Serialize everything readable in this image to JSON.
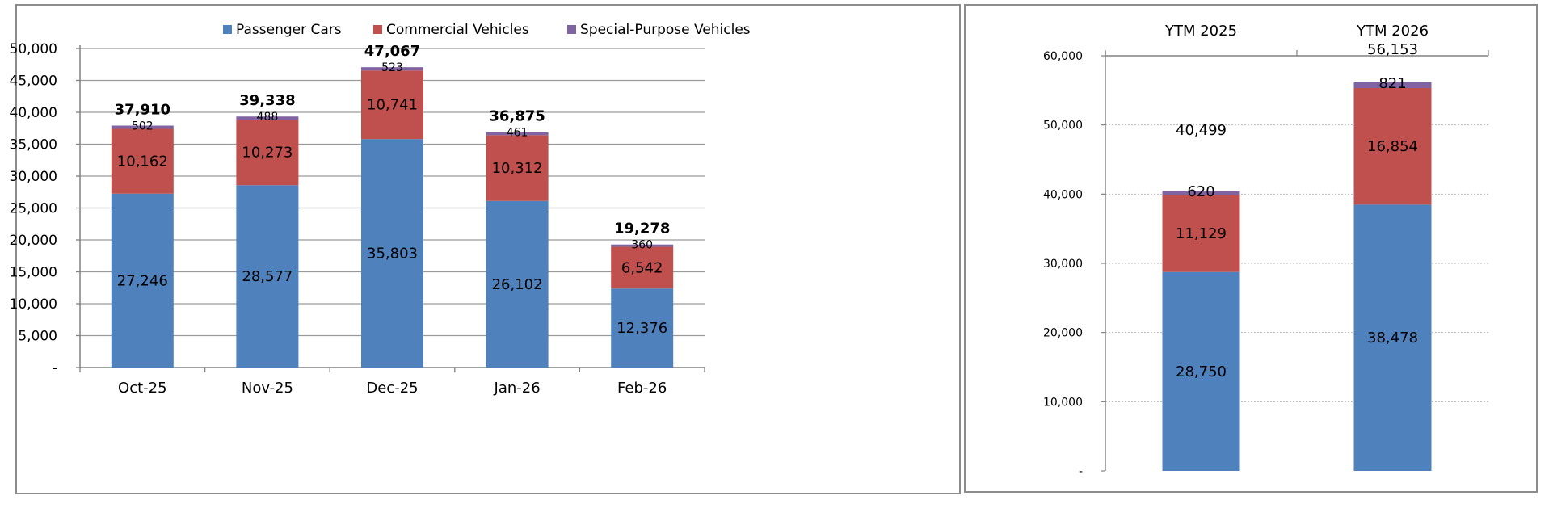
{
  "chart_data": [
    {
      "type": "bar",
      "stacked": true,
      "categories": [
        "Oct-25",
        "Nov-25",
        "Dec-25",
        "Jan-26",
        "Feb-26"
      ],
      "series": [
        {
          "name": "Passenger Cars",
          "color": "#4f81bd",
          "values": [
            27246,
            28577,
            35803,
            26102,
            12376
          ],
          "labels": [
            "27,246",
            "28,577",
            "35,803",
            "26,102",
            "12,376"
          ]
        },
        {
          "name": "Commercial Vehicles",
          "color": "#c0504d",
          "values": [
            10162,
            10273,
            10741,
            10312,
            6542
          ],
          "labels": [
            "10,162",
            "10,273",
            "10,741",
            "10,312",
            "6,542"
          ]
        },
        {
          "name": "Special-Purpose Vehicles",
          "color": "#8064a2",
          "values": [
            502,
            488,
            523,
            461,
            360
          ],
          "labels": [
            "502",
            "488",
            "523",
            "461",
            "360"
          ]
        }
      ],
      "totals": [
        37910,
        39338,
        47067,
        36875,
        19278
      ],
      "total_labels": [
        "37,910",
        "39,338",
        "47,067",
        "36,875",
        "19,278"
      ],
      "ylim": [
        0,
        50000
      ],
      "yticks": [
        0,
        5000,
        10000,
        15000,
        20000,
        25000,
        30000,
        35000,
        40000,
        45000,
        50000
      ],
      "ytick_labels": [
        "-",
        "5,000",
        "10,000",
        "15,000",
        "20,000",
        "25,000",
        "30,000",
        "35,000",
        "40,000",
        "45,000",
        "50,000"
      ],
      "grid": true,
      "legend": "top",
      "title": "",
      "xlabel": "",
      "ylabel": ""
    },
    {
      "type": "bar",
      "stacked": true,
      "categories": [
        "YTM 2025",
        "YTM 2026"
      ],
      "series": [
        {
          "name": "Passenger Cars",
          "color": "#4f81bd",
          "values": [
            28750,
            38478
          ],
          "labels": [
            "28,750",
            "38,478"
          ]
        },
        {
          "name": "Commercial Vehicles",
          "color": "#c0504d",
          "values": [
            11129,
            16854
          ],
          "labels": [
            "11,129",
            "16,854"
          ]
        },
        {
          "name": "Special-Purpose Vehicles",
          "color": "#8064a2",
          "values": [
            620,
            821
          ],
          "labels": [
            "620",
            "821"
          ]
        }
      ],
      "totals": [
        40499,
        56153
      ],
      "total_labels": [
        "40,499",
        "56,153"
      ],
      "ylim": [
        0,
        60000
      ],
      "yticks": [
        0,
        10000,
        20000,
        30000,
        40000,
        50000,
        60000
      ],
      "ytick_labels": [
        "-",
        "10,000",
        "20,000",
        "30,000",
        "40,000",
        "50,000",
        "60,000"
      ],
      "grid": true,
      "grid_style": "dotted",
      "category_axis": "top",
      "title": "",
      "xlabel": "",
      "ylabel": ""
    }
  ]
}
